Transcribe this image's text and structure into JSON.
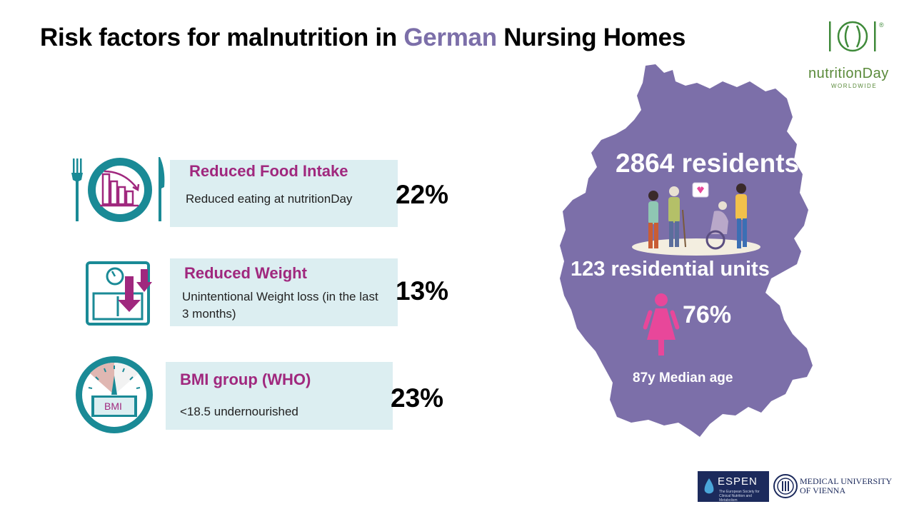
{
  "title": {
    "part1": "Risk factors for malnutrition in ",
    "highlight": "German",
    "part2": " Nursing Homes"
  },
  "logo": {
    "brand": "nutritionDay",
    "tagline": "WORLDWIDE",
    "reg": "®"
  },
  "factors": [
    {
      "heading": "Reduced Food Intake",
      "description": "Reduced eating at nutritionDay",
      "percent": "22%"
    },
    {
      "heading": "Reduced Weight",
      "description": "Unintentional Weight loss (in the last 3 months)",
      "percent": "13%"
    },
    {
      "heading": "BMI group (WHO)",
      "description": "<18.5 undernourished",
      "percent": "23%",
      "icon_label": "BMI"
    }
  ],
  "map": {
    "residents": "2864 residents",
    "units": "123 residential units",
    "female_percent": "76%",
    "median_age": "87y Median age"
  },
  "footer": {
    "espen": "ESPEN",
    "espen_sub": "The European Society for Clinical Nutrition and Metabolism",
    "university": "MEDICAL UNIVERSITY OF VIENNA"
  },
  "colors": {
    "accent_purple": "#7c6fa9",
    "heading_magenta": "#a0287e",
    "icon_teal": "#1a8a96",
    "card_bg": "#dceef1",
    "map_fill": "#7c6fa9",
    "female_pink": "#e8479a"
  }
}
